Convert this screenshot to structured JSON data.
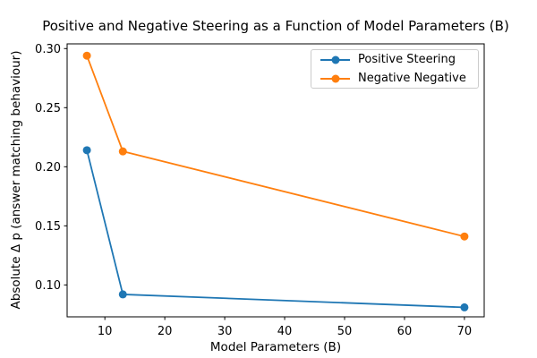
{
  "chart_data": {
    "type": "line",
    "title": "Positive and Negative Steering as a Function of Model Parameters (B)",
    "xlabel": "Model Parameters (B)",
    "ylabel": "Absolute Δ p (answer matching behaviour)",
    "x": [
      7,
      13,
      70
    ],
    "series": [
      {
        "name": "Positive Steering",
        "color": "#1f77b4",
        "values": [
          0.214,
          0.092,
          0.081
        ]
      },
      {
        "name": "Negative Negative",
        "color": "#ff7f0e",
        "values": [
          0.294,
          0.213,
          0.141
        ]
      }
    ],
    "xticks": [
      10,
      20,
      30,
      40,
      50,
      60,
      70
    ],
    "yticks": [
      0.1,
      0.15,
      0.2,
      0.25,
      0.3
    ],
    "xlim": [
      3.7,
      73.3
    ],
    "ylim": [
      0.073,
      0.304
    ],
    "grid": false,
    "legend_position": "upper right",
    "marker": "o",
    "background": "#ffffff",
    "spine_color": "#000000"
  }
}
